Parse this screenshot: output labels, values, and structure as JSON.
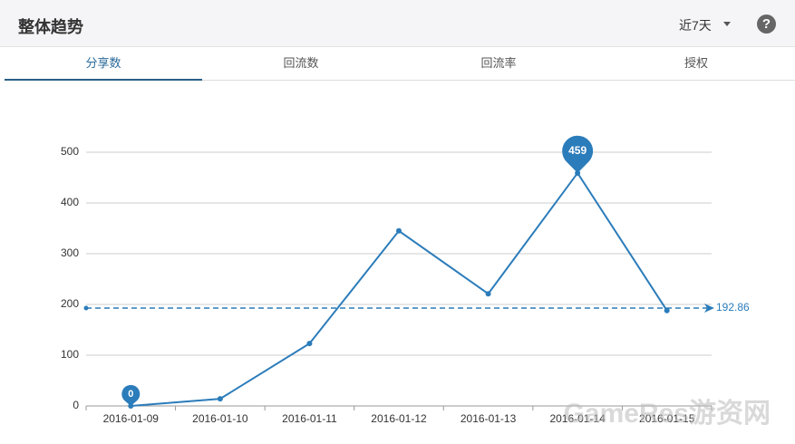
{
  "header": {
    "title": "整体趋势",
    "range_select": "近7天"
  },
  "tabs": [
    "分享数",
    "回流数",
    "回流率",
    "授权"
  ],
  "chart_data": {
    "type": "line",
    "categories": [
      "2016-01-09",
      "2016-01-10",
      "2016-01-11",
      "2016-01-12",
      "2016-01-13",
      "2016-01-14",
      "2016-01-15"
    ],
    "values": [
      0,
      14,
      123,
      345,
      221,
      459,
      188
    ],
    "color": "#2b7cba",
    "average": 192.86,
    "ylim": [
      0,
      500
    ],
    "yticks": [
      0,
      100,
      200,
      300,
      400,
      500
    ],
    "grid": true
  },
  "watermark": "GameRes游资网"
}
